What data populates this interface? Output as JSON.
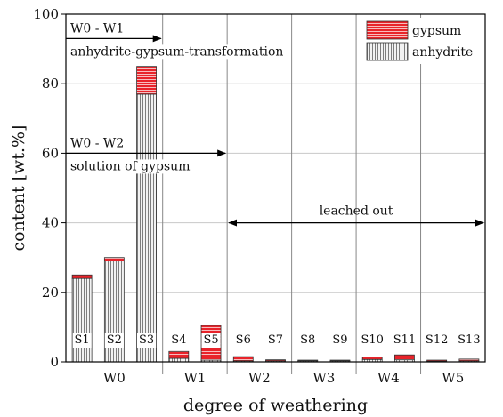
{
  "chart_data": {
    "type": "bar",
    "stacked": true,
    "xlabel": "degree of weathering",
    "ylabel": "content [wt.%]",
    "ylim": [
      0,
      100
    ],
    "yticks": [
      0,
      20,
      40,
      60,
      80,
      100
    ],
    "grid": true,
    "legend_position": "top-right",
    "groups": [
      {
        "label": "W0",
        "samples": [
          "S1",
          "S2",
          "S3"
        ]
      },
      {
        "label": "W1",
        "samples": [
          "S4",
          "S5"
        ]
      },
      {
        "label": "W2",
        "samples": [
          "S6",
          "S7"
        ]
      },
      {
        "label": "W3",
        "samples": [
          "S8",
          "S9"
        ]
      },
      {
        "label": "W4",
        "samples": [
          "S10",
          "S11"
        ]
      },
      {
        "label": "W5",
        "samples": [
          "S12",
          "S13"
        ]
      }
    ],
    "categories": [
      "S1",
      "S2",
      "S3",
      "S4",
      "S5",
      "S6",
      "S7",
      "S8",
      "S9",
      "S10",
      "S11",
      "S12",
      "S13"
    ],
    "series": [
      {
        "name": "anhydrite",
        "color": "#b5b5b5",
        "pattern": "vertical-lines",
        "values": [
          24,
          29,
          77,
          1,
          0.5,
          0.3,
          0.3,
          0.3,
          0.3,
          0.7,
          0.6,
          0.2,
          0.3
        ]
      },
      {
        "name": "gypsum",
        "color": "#e8232a",
        "pattern": "horizontal-lines",
        "values": [
          1,
          1,
          8,
          2,
          10,
          1.2,
          0.3,
          0.2,
          0.2,
          0.7,
          1.4,
          0.3,
          0.5
        ]
      }
    ],
    "annotations": [
      {
        "label_line1": "W0 - W1",
        "label_line2": "anhydrite-gypsum-transformation",
        "y": 93,
        "from_group": "W0",
        "to_group": "W0",
        "arrow": "right"
      },
      {
        "label_line1": "W0 - W2",
        "label_line2": "solution of gypsum",
        "y": 60,
        "from_group": "W0",
        "to_group": "W1",
        "arrow": "right"
      },
      {
        "label_line1": "leached out",
        "label_line2": "",
        "y": 40,
        "from_group": "W2",
        "to_group": "W5",
        "arrow": "both"
      }
    ]
  }
}
